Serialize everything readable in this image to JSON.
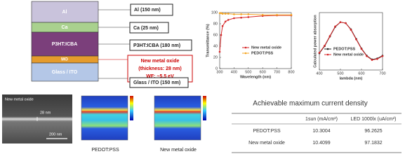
{
  "layer_stack": {
    "layers": [
      {
        "name": "Al",
        "label": "Al (150 nm)"
      },
      {
        "name": "Ca",
        "label": "Ca (25 nm)"
      },
      {
        "name": "P3HT:ICBA",
        "label": "P3HT:ICBA (180 nm)"
      },
      {
        "name": "MO",
        "label": [
          "New metal oxide",
          "(thickness: 28 nm)",
          "WF: ~5.5 eV"
        ]
      },
      {
        "name": "Glass / ITO",
        "label": "Glass / ITO (150 nm)"
      }
    ]
  },
  "chart_data": [
    {
      "type": "line",
      "x_label": "Wavelength (nm)",
      "y_label": "Transmittance (%)",
      "x": [
        300,
        310,
        320,
        340,
        360,
        400,
        450,
        500,
        600,
        700,
        800
      ],
      "xlim": [
        300,
        800
      ],
      "xticks": [
        300,
        400,
        500,
        600,
        700,
        800
      ],
      "ylim": [
        0,
        100
      ],
      "yticks": [
        0,
        20,
        40,
        60,
        80,
        100
      ],
      "series": [
        {
          "name": "New metal oxide",
          "color": "#d62728",
          "values": [
            30,
            60,
            76,
            84,
            87,
            90,
            91,
            92,
            94,
            95,
            95
          ]
        },
        {
          "name": "PEDOT:PSS",
          "color": "#f5a623",
          "values": [
            99,
            99,
            98,
            98,
            98,
            97,
            97,
            97,
            96,
            96,
            96
          ]
        }
      ]
    },
    {
      "type": "line",
      "x_label": "lambda (nm)",
      "y_label": "Calculated power absorption",
      "x": [
        400,
        425,
        450,
        475,
        500,
        525,
        550,
        575,
        600,
        625,
        650,
        675,
        700
      ],
      "xlim": [
        400,
        700
      ],
      "xticks": [
        400,
        500,
        600,
        700
      ],
      "ylim": [
        0,
        1.2
      ],
      "series": [
        {
          "name": "PEDOT:PSS",
          "color": "#222222",
          "values": [
            0.35,
            0.5,
            0.7,
            0.9,
            1.0,
            0.98,
            0.85,
            0.65,
            0.45,
            0.3,
            0.22,
            0.24,
            0.3
          ]
        },
        {
          "name": "New metal oxide",
          "color": "#d62728",
          "values": [
            0.36,
            0.51,
            0.71,
            0.91,
            1.0,
            0.98,
            0.84,
            0.64,
            0.44,
            0.29,
            0.21,
            0.23,
            0.29
          ]
        }
      ]
    }
  ],
  "sem": {
    "title": "New metal oxide",
    "thickness": "28 nm",
    "scale": "200 nm"
  },
  "maps": [
    "PEDOT:PSS",
    "New metal oxide"
  ],
  "table": {
    "title": "Achievable maximum current density",
    "header": [
      "1sun (mA/cm²)",
      "LED 1000lx (uA/cm²)"
    ],
    "rows": [
      [
        "PEDOT:PSS",
        "10.3004",
        "96.2625"
      ],
      [
        "New metal oxide",
        "10.4099",
        "97.1832"
      ]
    ]
  }
}
